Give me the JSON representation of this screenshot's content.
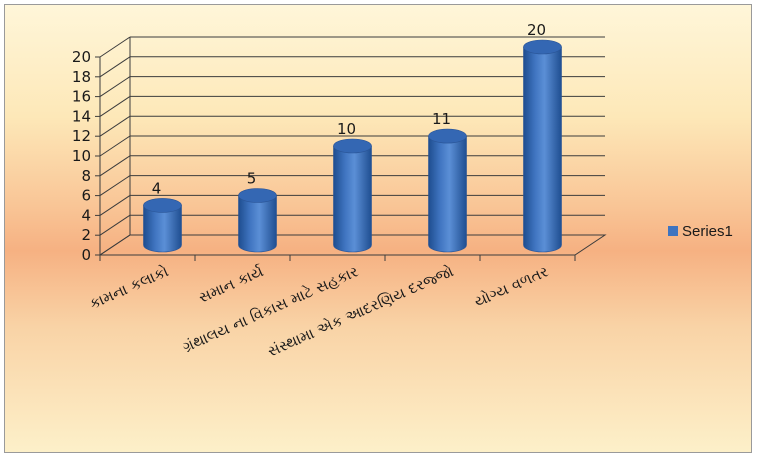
{
  "chart_data": {
    "type": "bar",
    "style": "3d-cylinder",
    "categories": [
      "કામના કલાકો",
      "સમાન કાર્ય",
      "ગ્રંથાલય ના વિકાસ માટે સહકાર",
      "સંસ્થામા એક આદરણિય દરજ્જો",
      "યોગ્ય વળતર"
    ],
    "series": [
      {
        "name": "Series1",
        "values": [
          4,
          5,
          10,
          11,
          20
        ],
        "color": "#3f74c0"
      }
    ],
    "ylim": [
      0,
      20
    ],
    "yticks": [
      0,
      2,
      4,
      6,
      8,
      10,
      12,
      14,
      16,
      18,
      20
    ],
    "grid": true,
    "legend": "right",
    "title": "",
    "xlabel": "",
    "ylabel": ""
  }
}
